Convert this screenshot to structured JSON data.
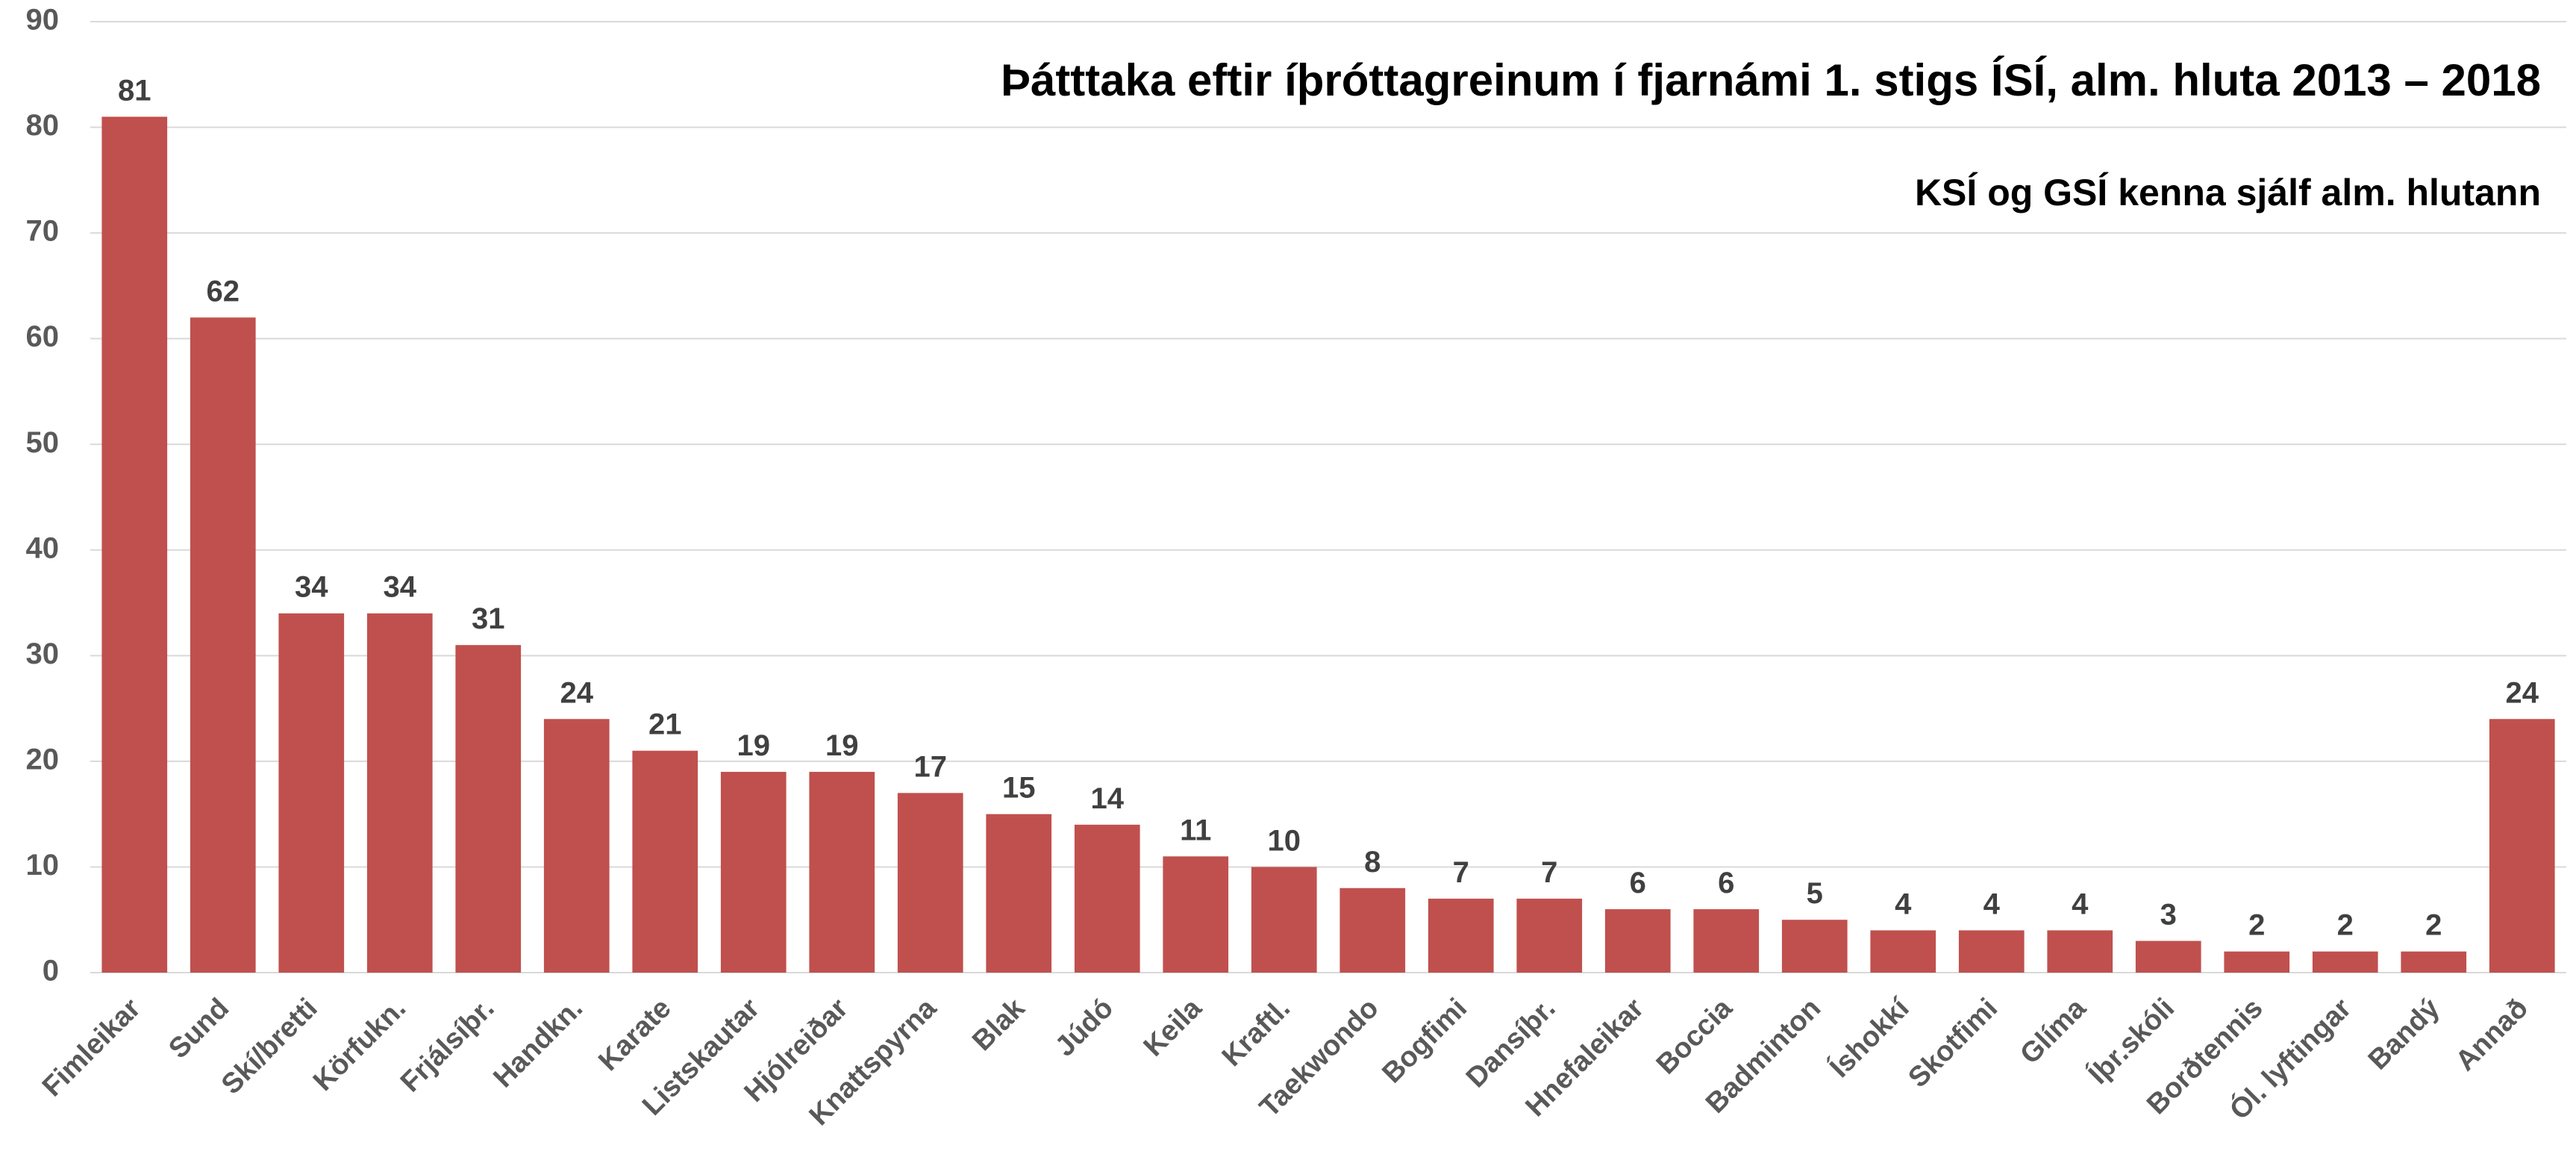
{
  "chart_data": {
    "type": "bar",
    "title": "Þátttaka eftir íþróttagreinum í fjarnámi 1. stigs ÍSÍ, alm. hluta 2013 – 2018",
    "subtitle": "KSÍ og GSÍ kenna sjálf alm. hlutann",
    "categories": [
      "Fimleikar",
      "Sund",
      "Skí/bretti",
      "Körfukn.",
      "Frjálsíþr.",
      "Handkn.",
      "Karate",
      "Listskautar",
      "Hjólreiðar",
      "Knattspyrna",
      "Blak",
      "Júdó",
      "Keila",
      "Kraftl.",
      "Taekwondo",
      "Bogfimi",
      "Dansíþr.",
      "Hnefaleikar",
      "Boccia",
      "Badminton",
      "Íshokkí",
      "Skotfimi",
      "Glíma",
      "Íþr.skóli",
      "Borðtennis",
      "Ól. lyftingar",
      "Bandý",
      "Annað"
    ],
    "values": [
      81,
      62,
      34,
      34,
      31,
      24,
      21,
      19,
      19,
      17,
      15,
      14,
      11,
      10,
      8,
      7,
      7,
      6,
      6,
      5,
      4,
      4,
      4,
      3,
      2,
      2,
      2,
      24
    ],
    "color": "#c0504d",
    "ylim": [
      0,
      90
    ],
    "yticks": [
      0,
      10,
      20,
      30,
      40,
      50,
      60,
      70,
      80,
      90
    ],
    "grid": true
  }
}
